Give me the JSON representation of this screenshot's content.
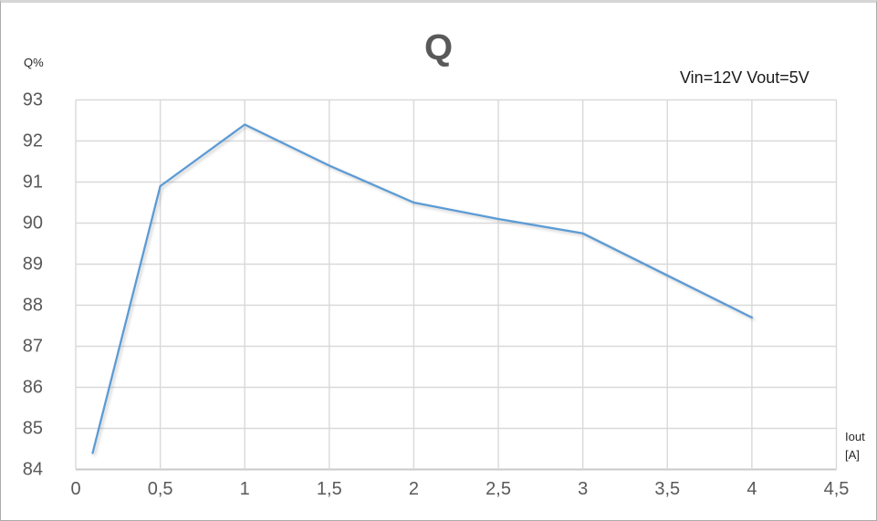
{
  "window": {
    "background": "#ffffff",
    "border_color": "#ababab"
  },
  "chart_data": {
    "type": "line",
    "title": "Q",
    "annotation": "Vin=12V Vout=5V",
    "ylabel": "Q%",
    "xlabel_line1": "Iout",
    "xlabel_line2": "[A]",
    "x": [
      0.1,
      0.5,
      1,
      1.5,
      2,
      2.5,
      3,
      4
    ],
    "y": [
      84.4,
      90.9,
      92.4,
      91.4,
      90.5,
      90.1,
      89.75,
      87.7
    ],
    "xlim": [
      0,
      4.5
    ],
    "ylim": [
      84,
      93
    ],
    "x_ticks": [
      0,
      0.5,
      1,
      1.5,
      2,
      2.5,
      3,
      3.5,
      4,
      4.5
    ],
    "x_tick_labels": [
      "0",
      "0,5",
      "1",
      "1,5",
      "2",
      "2,5",
      "3",
      "3,5",
      "4",
      "4,5"
    ],
    "y_ticks": [
      84,
      85,
      86,
      87,
      88,
      89,
      90,
      91,
      92,
      93
    ],
    "y_tick_labels": [
      "84",
      "85",
      "86",
      "87",
      "88",
      "89",
      "90",
      "91",
      "92",
      "93"
    ],
    "grid": true,
    "legend": "none",
    "markers": "none",
    "colors": {
      "line": "#5b9bd5",
      "grid": "#d9d9d9",
      "axis": "#c9c9c9",
      "tick_text": "#595959",
      "title_text": "#595959",
      "unit_text": "#262626",
      "annotation_text": "#1a1a1a"
    }
  }
}
